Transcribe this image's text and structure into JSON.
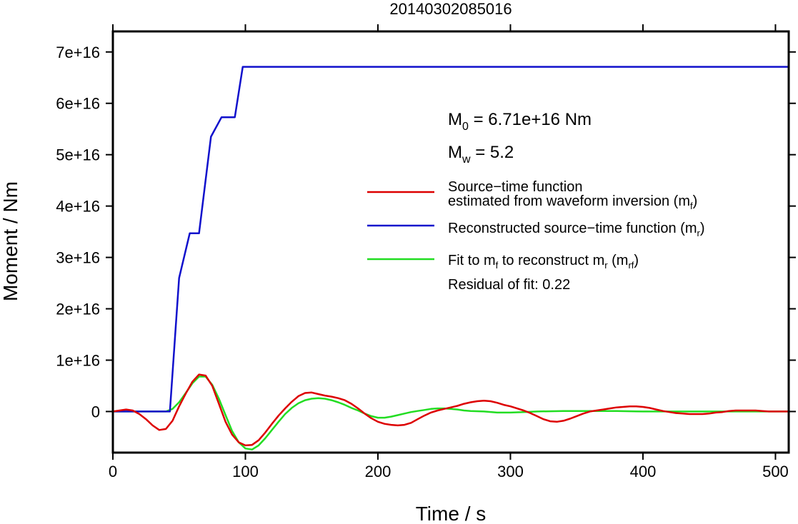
{
  "chart_data": {
    "type": "line",
    "title": "20140302085016",
    "xlabel": "Time / s",
    "ylabel": "Moment / Nm",
    "xlim": [
      0,
      510
    ],
    "ylim": [
      -8000000000000000.0,
      7.4e+16
    ],
    "x_ticks": [
      0,
      100,
      200,
      300,
      400,
      500
    ],
    "x_tick_labels": [
      "0",
      "100",
      "200",
      "300",
      "400",
      "500"
    ],
    "y_ticks": [
      0,
      1e+16,
      2e+16,
      3e+16,
      4e+16,
      5e+16,
      6e+16,
      7e+16
    ],
    "y_tick_labels": [
      "0",
      "1e+16",
      "2e+16",
      "3e+16",
      "4e+16",
      "5e+16",
      "6e+16",
      "7e+16"
    ],
    "grid": false,
    "legend_position": "right-middle",
    "annotations": {
      "m0_symbol": "M",
      "m0_subscript": "0",
      "m0_value": " = 6.71e+16 Nm",
      "mw_symbol": "M",
      "mw_subscript": "w",
      "mw_value": " = 5.2",
      "residual": "Residual of fit: 0.22"
    },
    "series": [
      {
        "key": "stf",
        "color": "#dd0000",
        "legend_line1": "Source−time function",
        "legend_line2_pre": "estimated from waveform inversion (m",
        "legend_line2_sub": "f",
        "legend_line2_post": ")",
        "points": [
          [
            0,
            0
          ],
          [
            5,
            200000000000000.0
          ],
          [
            10,
            400000000000000.0
          ],
          [
            15,
            200000000000000.0
          ],
          [
            20,
            -500000000000000.0
          ],
          [
            25,
            -1500000000000000.0
          ],
          [
            30,
            -2700000000000000.0
          ],
          [
            35,
            -3600000000000000.0
          ],
          [
            40,
            -3400000000000000.0
          ],
          [
            45,
            -1800000000000000.0
          ],
          [
            50,
            1000000000000000.0
          ],
          [
            55,
            3500000000000000.0
          ],
          [
            60,
            5800000000000000.0
          ],
          [
            65,
            7200000000000000.0
          ],
          [
            70,
            7000000000000000.0
          ],
          [
            75,
            5000000000000000.0
          ],
          [
            80,
            1500000000000000.0
          ],
          [
            85,
            -2000000000000000.0
          ],
          [
            90,
            -4500000000000000.0
          ],
          [
            95,
            -6000000000000000.0
          ],
          [
            100,
            -6600000000000000.0
          ],
          [
            105,
            -6500000000000000.0
          ],
          [
            110,
            -5600000000000000.0
          ],
          [
            115,
            -4100000000000000.0
          ],
          [
            120,
            -2400000000000000.0
          ],
          [
            125,
            -800000000000000.0
          ],
          [
            130,
            600000000000000.0
          ],
          [
            135,
            1900000000000000.0
          ],
          [
            140,
            3000000000000000.0
          ],
          [
            145,
            3600000000000000.0
          ],
          [
            150,
            3700000000000000.0
          ],
          [
            155,
            3400000000000000.0
          ],
          [
            160,
            3100000000000000.0
          ],
          [
            165,
            2900000000000000.0
          ],
          [
            170,
            2600000000000000.0
          ],
          [
            175,
            2200000000000000.0
          ],
          [
            180,
            1500000000000000.0
          ],
          [
            185,
            600000000000000.0
          ],
          [
            190,
            -400000000000000.0
          ],
          [
            195,
            -1300000000000000.0
          ],
          [
            200,
            -2000000000000000.0
          ],
          [
            205,
            -2400000000000000.0
          ],
          [
            210,
            -2600000000000000.0
          ],
          [
            215,
            -2700000000000000.0
          ],
          [
            220,
            -2600000000000000.0
          ],
          [
            225,
            -2200000000000000.0
          ],
          [
            230,
            -1500000000000000.0
          ],
          [
            235,
            -800000000000000.0
          ],
          [
            240,
            -200000000000000.0
          ],
          [
            245,
            200000000000000.0
          ],
          [
            250,
            500000000000000.0
          ],
          [
            255,
            800000000000000.0
          ],
          [
            260,
            1100000000000000.0
          ],
          [
            265,
            1500000000000000.0
          ],
          [
            270,
            1800000000000000.0
          ],
          [
            275,
            2000000000000000.0
          ],
          [
            280,
            2100000000000000.0
          ],
          [
            285,
            2000000000000000.0
          ],
          [
            290,
            1700000000000000.0
          ],
          [
            295,
            1300000000000000.0
          ],
          [
            300,
            1000000000000000.0
          ],
          [
            305,
            600000000000000.0
          ],
          [
            310,
            200000000000000.0
          ],
          [
            315,
            -300000000000000.0
          ],
          [
            320,
            -900000000000000.0
          ],
          [
            325,
            -1500000000000000.0
          ],
          [
            330,
            -1900000000000000.0
          ],
          [
            335,
            -2000000000000000.0
          ],
          [
            340,
            -1800000000000000.0
          ],
          [
            345,
            -1400000000000000.0
          ],
          [
            350,
            -900000000000000.0
          ],
          [
            355,
            -400000000000000.0
          ],
          [
            360,
            0
          ],
          [
            365,
            200000000000000.0
          ],
          [
            370,
            400000000000000.0
          ],
          [
            375,
            600000000000000.0
          ],
          [
            380,
            800000000000000.0
          ],
          [
            385,
            900000000000000.0
          ],
          [
            390,
            1000000000000000.0
          ],
          [
            395,
            1000000000000000.0
          ],
          [
            400,
            900000000000000.0
          ],
          [
            405,
            700000000000000.0
          ],
          [
            410,
            400000000000000.0
          ],
          [
            415,
            100000000000000.0
          ],
          [
            420,
            -100000000000000.0
          ],
          [
            425,
            -300000000000000.0
          ],
          [
            430,
            -400000000000000.0
          ],
          [
            435,
            -500000000000000.0
          ],
          [
            440,
            -500000000000000.0
          ],
          [
            445,
            -500000000000000.0
          ],
          [
            450,
            -400000000000000.0
          ],
          [
            455,
            -200000000000000.0
          ],
          [
            460,
            -100000000000000.0
          ],
          [
            465,
            100000000000000.0
          ],
          [
            470,
            200000000000000.0
          ],
          [
            475,
            200000000000000.0
          ],
          [
            480,
            200000000000000.0
          ],
          [
            485,
            200000000000000.0
          ],
          [
            490,
            100000000000000.0
          ],
          [
            495,
            0
          ],
          [
            500,
            0
          ],
          [
            505,
            0
          ],
          [
            510,
            0
          ]
        ]
      },
      {
        "key": "reconstructed",
        "color": "#1010cc",
        "legend_line1_pre": "Reconstructed source−time function (m",
        "legend_line1_sub": "r",
        "legend_line1_post": ")",
        "points": [
          [
            0,
            0
          ],
          [
            43,
            0
          ],
          [
            50,
            2.6e+16
          ],
          [
            58,
            3.47e+16
          ],
          [
            65,
            3.47e+16
          ],
          [
            74,
            5.35e+16
          ],
          [
            82,
            5.73e+16
          ],
          [
            92,
            5.73e+16
          ],
          [
            98,
            6.71e+16
          ],
          [
            510,
            6.71e+16
          ]
        ]
      },
      {
        "key": "fit",
        "color": "#22dd22",
        "legend_line1_pre": "Fit to m",
        "legend_line1_sub1": "f",
        "legend_line1_mid": " to reconstruct m",
        "legend_line1_sub2": "r",
        "legend_line1_mid2": " (m",
        "legend_line1_sub3": "rf",
        "legend_line1_post": ")",
        "points": [
          [
            0,
            0
          ],
          [
            40,
            0
          ],
          [
            45,
            500000000000000.0
          ],
          [
            50,
            1800000000000000.0
          ],
          [
            55,
            3600000000000000.0
          ],
          [
            60,
            5500000000000000.0
          ],
          [
            65,
            6800000000000000.0
          ],
          [
            70,
            6800000000000000.0
          ],
          [
            75,
            5200000000000000.0
          ],
          [
            80,
            2500000000000000.0
          ],
          [
            85,
            -700000000000000.0
          ],
          [
            90,
            -3800000000000000.0
          ],
          [
            95,
            -6000000000000000.0
          ],
          [
            100,
            -7200000000000000.0
          ],
          [
            105,
            -7400000000000000.0
          ],
          [
            110,
            -6600000000000000.0
          ],
          [
            115,
            -5200000000000000.0
          ],
          [
            120,
            -3600000000000000.0
          ],
          [
            125,
            -2000000000000000.0
          ],
          [
            130,
            -500000000000000.0
          ],
          [
            135,
            700000000000000.0
          ],
          [
            140,
            1600000000000000.0
          ],
          [
            145,
            2200000000000000.0
          ],
          [
            150,
            2500000000000000.0
          ],
          [
            155,
            2600000000000000.0
          ],
          [
            160,
            2500000000000000.0
          ],
          [
            165,
            2200000000000000.0
          ],
          [
            170,
            1800000000000000.0
          ],
          [
            175,
            1300000000000000.0
          ],
          [
            180,
            700000000000000.0
          ],
          [
            185,
            200000000000000.0
          ],
          [
            190,
            -400000000000000.0
          ],
          [
            195,
            -900000000000000.0
          ],
          [
            200,
            -1200000000000000.0
          ],
          [
            205,
            -1200000000000000.0
          ],
          [
            210,
            -1000000000000000.0
          ],
          [
            215,
            -700000000000000.0
          ],
          [
            220,
            -400000000000000.0
          ],
          [
            225,
            -100000000000000.0
          ],
          [
            230,
            100000000000000.0
          ],
          [
            235,
            300000000000000.0
          ],
          [
            240,
            500000000000000.0
          ],
          [
            245,
            600000000000000.0
          ],
          [
            250,
            600000000000000.0
          ],
          [
            255,
            500000000000000.0
          ],
          [
            260,
            400000000000000.0
          ],
          [
            265,
            200000000000000.0
          ],
          [
            270,
            100000000000000.0
          ],
          [
            280,
            0
          ],
          [
            290,
            -200000000000000.0
          ],
          [
            300,
            -200000000000000.0
          ],
          [
            310,
            -100000000000000.0
          ],
          [
            320,
            0
          ],
          [
            340,
            100000000000000.0
          ],
          [
            360,
            100000000000000.0
          ],
          [
            380,
            100000000000000.0
          ],
          [
            400,
            0
          ],
          [
            420,
            0
          ],
          [
            440,
            0
          ],
          [
            460,
            0
          ],
          [
            480,
            0
          ],
          [
            500,
            0
          ],
          [
            510,
            0
          ]
        ]
      }
    ]
  }
}
